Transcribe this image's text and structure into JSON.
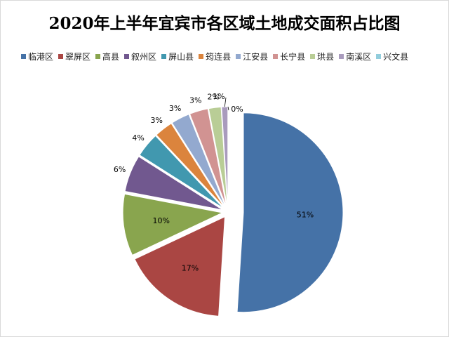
{
  "chart_data": {
    "type": "pie",
    "title": "2020年上半年宜宾市各区域土地成交面积占比图",
    "legend_position": "top",
    "slices": [
      {
        "name": "临港区",
        "value": 51,
        "label": "51%",
        "color": "#4572a7"
      },
      {
        "name": "翠屏区",
        "value": 17,
        "label": "17%",
        "color": "#aa4643"
      },
      {
        "name": "高县",
        "value": 10,
        "label": "10%",
        "color": "#89a54e"
      },
      {
        "name": "叙州区",
        "value": 6,
        "label": "6%",
        "color": "#71588f"
      },
      {
        "name": "屏山县",
        "value": 4,
        "label": "4%",
        "color": "#4198af"
      },
      {
        "name": "筠连县",
        "value": 3,
        "label": "3%",
        "color": "#db843d"
      },
      {
        "name": "江安县",
        "value": 3,
        "label": "3%",
        "color": "#93a9cf"
      },
      {
        "name": "长宁县",
        "value": 3,
        "label": "3%",
        "color": "#d19392"
      },
      {
        "name": "珙县",
        "value": 2,
        "label": "2%",
        "color": "#b9cd96"
      },
      {
        "name": "南溪区",
        "value": 1,
        "label": "1%",
        "color": "#a99bbd"
      },
      {
        "name": "兴文县",
        "value": 0,
        "label": "0%",
        "color": "#92cddc"
      }
    ]
  }
}
